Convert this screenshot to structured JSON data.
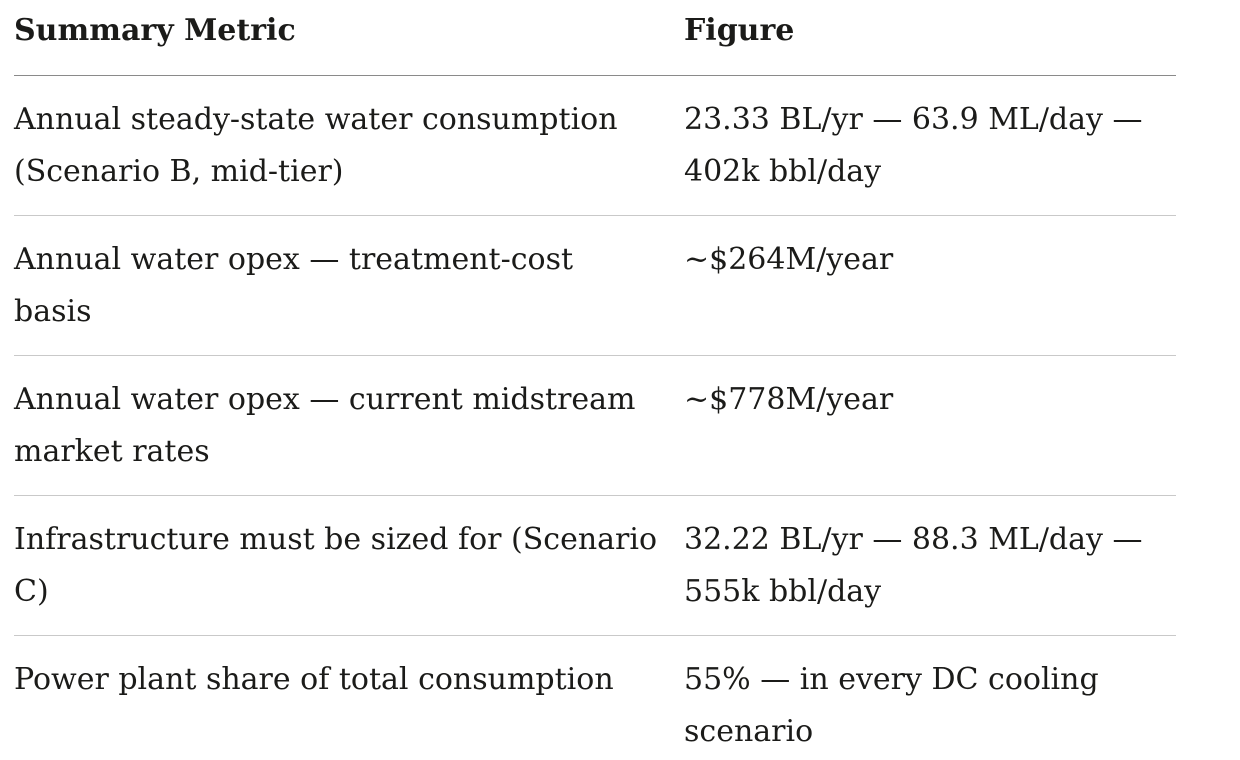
{
  "colors": {
    "text": "#1b1b19",
    "header_rule": "#8a8a8a",
    "row_rule": "#c9c9c9",
    "bottom_rule": "#b5b5b5",
    "page_background": "#ffffff"
  },
  "table": {
    "headers": [
      "Summary Metric",
      "Figure"
    ],
    "rows": [
      {
        "metric": "Annual steady-state water consumption (Scenario B, mid-tier)",
        "figure": "23.33 BL/yr — 63.9 ML/day — 402k bbl/day"
      },
      {
        "metric": "Annual water opex — treatment-cost basis",
        "figure": "~$264M/year"
      },
      {
        "metric": "Annual water opex — current midstream market rates",
        "figure": "~$778M/year"
      },
      {
        "metric": "Infrastructure must be sized for (Scenario C)",
        "figure": "32.22 BL/yr — 88.3 ML/day — 555k bbl/day"
      },
      {
        "metric": "Power plant share of total consumption",
        "figure": "55% — in every DC cooling scenario"
      }
    ]
  }
}
